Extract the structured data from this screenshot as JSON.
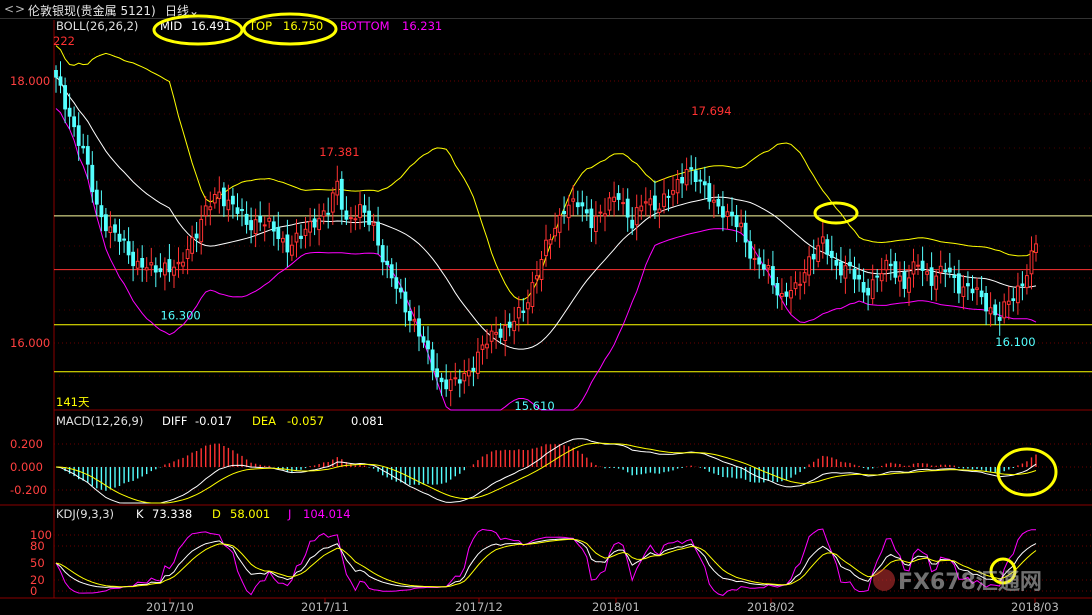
{
  "toolbar": {
    "nav_back": "<",
    "nav_fwd": "",
    "instrument": "伦敦银现(贵金属 5121)",
    "period": "日线"
  },
  "boll": {
    "name": "BOLL(26,26,2)",
    "mid_label": "MID",
    "mid_value": "16.491",
    "top_label": "TOP",
    "top_value": "16.750",
    "bottom_label": "BOTTOM",
    "bottom_value": "16.231",
    "extra": "222",
    "days": "141天"
  },
  "macd": {
    "name": "MACD(12,26,9)",
    "diff_label": "DIFF",
    "diff_value": "-0.017",
    "dea_label": "DEA",
    "dea_value": "-0.057",
    "macd_value": "0.081"
  },
  "kdj": {
    "name": "KDJ(9,3,3)",
    "k_label": "K",
    "k_value": "73.338",
    "d_label": "D",
    "d_value": "58.001",
    "j_label": "J",
    "j_value": "104.014"
  },
  "watermark": "FX678汇通网",
  "colors": {
    "up": "#ff3232",
    "down": "#54ffff",
    "mid": "#ffffff",
    "top": "#ffff00",
    "bottom": "#ff00ff",
    "hline": "#ffff00",
    "annot": "#ffff00"
  },
  "chart_data": [
    {
      "type": "candlestick",
      "title": "",
      "y_ticks": [
        "18.000",
        "16.000"
      ],
      "x_ticks": [
        "2017/10",
        "2017/11",
        "2017/12",
        "2018/01",
        "2018/02",
        "2018/03"
      ],
      "ylim": [
        15.55,
        18.45
      ],
      "annotations": [
        {
          "label": "17.381",
          "x": 62,
          "value": 17.381,
          "kind": "high"
        },
        {
          "label": "16.300",
          "x": 27,
          "value": 16.3,
          "kind": "low"
        },
        {
          "label": "15.610",
          "x": 105,
          "value": 15.61,
          "kind": "low"
        },
        {
          "label": "17.694",
          "x": 144,
          "value": 17.694,
          "kind": "high"
        },
        {
          "label": "16.100",
          "x": 211,
          "value": 16.1,
          "kind": "low"
        }
      ],
      "horizontal_levels": [
        16.97,
        16.56,
        16.14,
        15.78
      ],
      "candles_note": "generated from approximate closes per trading day"
    },
    {
      "type": "macd",
      "y_ticks": [
        "0.200",
        "0.000",
        "-0.200"
      ],
      "ylim": [
        -0.3,
        0.26
      ]
    },
    {
      "type": "kdj",
      "y_ticks": [
        "100",
        "80",
        "50",
        "20",
        "0"
      ],
      "ylim": [
        -5,
        110
      ]
    }
  ]
}
